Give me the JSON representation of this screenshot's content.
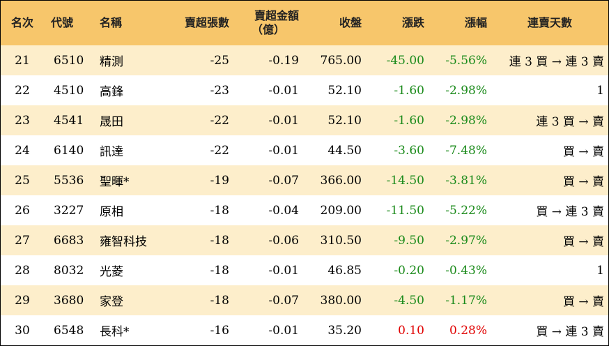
{
  "headers": {
    "rank": "名次",
    "code": "代號",
    "name": "名稱",
    "sell_lots": "賣超張數",
    "sell_amount_line1": "賣超金額",
    "sell_amount_line2": "（億）",
    "close": "收盤",
    "change": "漲跌",
    "change_pct": "漲幅",
    "streak": "連賣天數"
  },
  "colors": {
    "header_bg": "#f7c66b",
    "odd_row_bg": "#fdeecb",
    "even_row_bg": "#ffffff",
    "negative": "#1a8a1a",
    "positive": "#e00000"
  },
  "rows": [
    {
      "rank": "21",
      "code": "6510",
      "name": "精測",
      "lots": "-25",
      "amount": "-0.19",
      "close": "765.00",
      "change": "-45.00",
      "pct": "-5.56%",
      "streak": "連 3 買 → 連 3 賣",
      "dir": "neg"
    },
    {
      "rank": "22",
      "code": "4510",
      "name": "高鋒",
      "lots": "-23",
      "amount": "-0.01",
      "close": "52.10",
      "change": "-1.60",
      "pct": "-2.98%",
      "streak": "1",
      "dir": "neg"
    },
    {
      "rank": "23",
      "code": "4541",
      "name": "晟田",
      "lots": "-22",
      "amount": "-0.01",
      "close": "52.10",
      "change": "-1.60",
      "pct": "-2.98%",
      "streak": "連 3 買 → 賣",
      "dir": "neg"
    },
    {
      "rank": "24",
      "code": "6140",
      "name": "訊達",
      "lots": "-22",
      "amount": "-0.01",
      "close": "44.50",
      "change": "-3.60",
      "pct": "-7.48%",
      "streak": "買 → 賣",
      "dir": "neg"
    },
    {
      "rank": "25",
      "code": "5536",
      "name": "聖暉*",
      "lots": "-19",
      "amount": "-0.07",
      "close": "366.00",
      "change": "-14.50",
      "pct": "-3.81%",
      "streak": "買 → 賣",
      "dir": "neg"
    },
    {
      "rank": "26",
      "code": "3227",
      "name": "原相",
      "lots": "-18",
      "amount": "-0.04",
      "close": "209.00",
      "change": "-11.50",
      "pct": "-5.22%",
      "streak": "買 → 連 3 賣",
      "dir": "neg"
    },
    {
      "rank": "27",
      "code": "6683",
      "name": "雍智科技",
      "lots": "-18",
      "amount": "-0.06",
      "close": "310.50",
      "change": "-9.50",
      "pct": "-2.97%",
      "streak": "買 → 賣",
      "dir": "neg"
    },
    {
      "rank": "28",
      "code": "8032",
      "name": "光菱",
      "lots": "-18",
      "amount": "-0.01",
      "close": "46.85",
      "change": "-0.20",
      "pct": "-0.43%",
      "streak": "1",
      "dir": "neg"
    },
    {
      "rank": "29",
      "code": "3680",
      "name": "家登",
      "lots": "-18",
      "amount": "-0.07",
      "close": "380.00",
      "change": "-4.50",
      "pct": "-1.17%",
      "streak": "買 → 賣",
      "dir": "neg"
    },
    {
      "rank": "30",
      "code": "6548",
      "name": "長科*",
      "lots": "-16",
      "amount": "-0.01",
      "close": "35.20",
      "change": "0.10",
      "pct": "0.28%",
      "streak": "買 → 連 3 賣",
      "dir": "pos"
    }
  ]
}
